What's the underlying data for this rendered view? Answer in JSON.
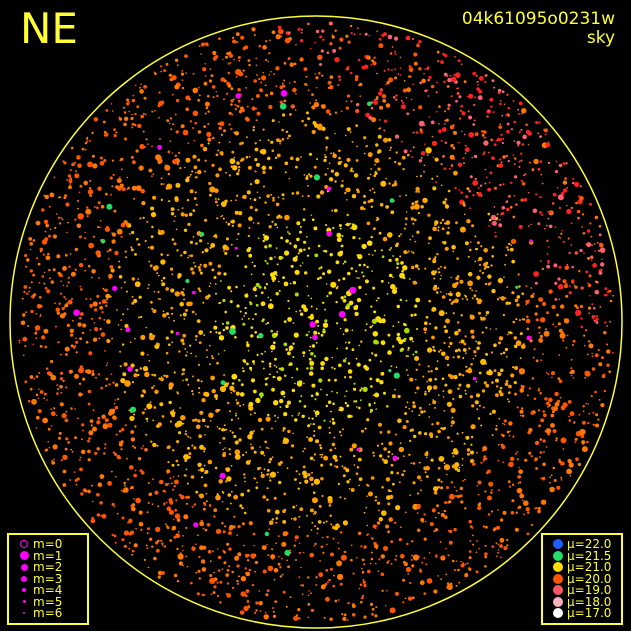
{
  "header": {
    "direction": "NE",
    "image_id": "04k61095o0231w",
    "mode": "sky"
  },
  "magnitude_legend": [
    {
      "label": "m=0",
      "size": 9,
      "hollow": true
    },
    {
      "label": "m=1",
      "size": 9
    },
    {
      "label": "m=2",
      "size": 7
    },
    {
      "label": "m=3",
      "size": 6
    },
    {
      "label": "m=4",
      "size": 4
    },
    {
      "label": "m=5",
      "size": 3
    },
    {
      "label": "m=6",
      "size": 2
    }
  ],
  "magnitude_color": "#ff00ff",
  "brightness_legend": [
    {
      "label": "μ=22.0",
      "color": "#1f5cff"
    },
    {
      "label": "μ=21.5",
      "color": "#22dd66"
    },
    {
      "label": "μ=21.0",
      "color": "#ffdd00"
    },
    {
      "label": "μ=20.0",
      "color": "#ff5500"
    },
    {
      "label": "μ=19.0",
      "color": "#ff5566"
    },
    {
      "label": "μ=18.0",
      "color": "#ffb0c0"
    },
    {
      "label": "μ=17.0",
      "color": "#ffffff"
    }
  ],
  "frame_color": "#ffff33"
}
